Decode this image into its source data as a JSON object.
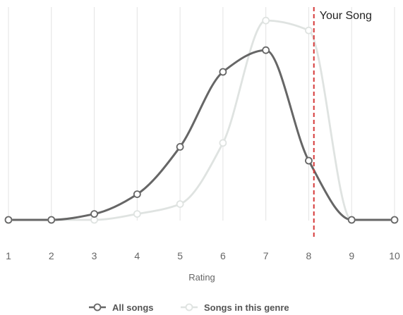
{
  "chart_data": {
    "type": "line",
    "xlabel": "Rating",
    "ylabel": "",
    "title": "",
    "x": [
      1,
      2,
      3,
      4,
      5,
      6,
      7,
      8,
      9,
      10
    ],
    "xlim": [
      1,
      10
    ],
    "ylim": [
      0,
      100
    ],
    "grid": true,
    "legend_position": "bottom",
    "series": [
      {
        "name": "All songs",
        "color": "#666666",
        "values": [
          0,
          0,
          3,
          13,
          37,
          75,
          86,
          30,
          0,
          0
        ]
      },
      {
        "name": "Songs in this genre",
        "color": "#dfe3e1",
        "values": [
          0,
          0,
          0,
          3,
          8,
          39,
          101,
          96,
          0,
          0
        ]
      }
    ],
    "reference_line": {
      "x": 8.12,
      "label": "Your Song",
      "color": "#d63a3a"
    }
  }
}
